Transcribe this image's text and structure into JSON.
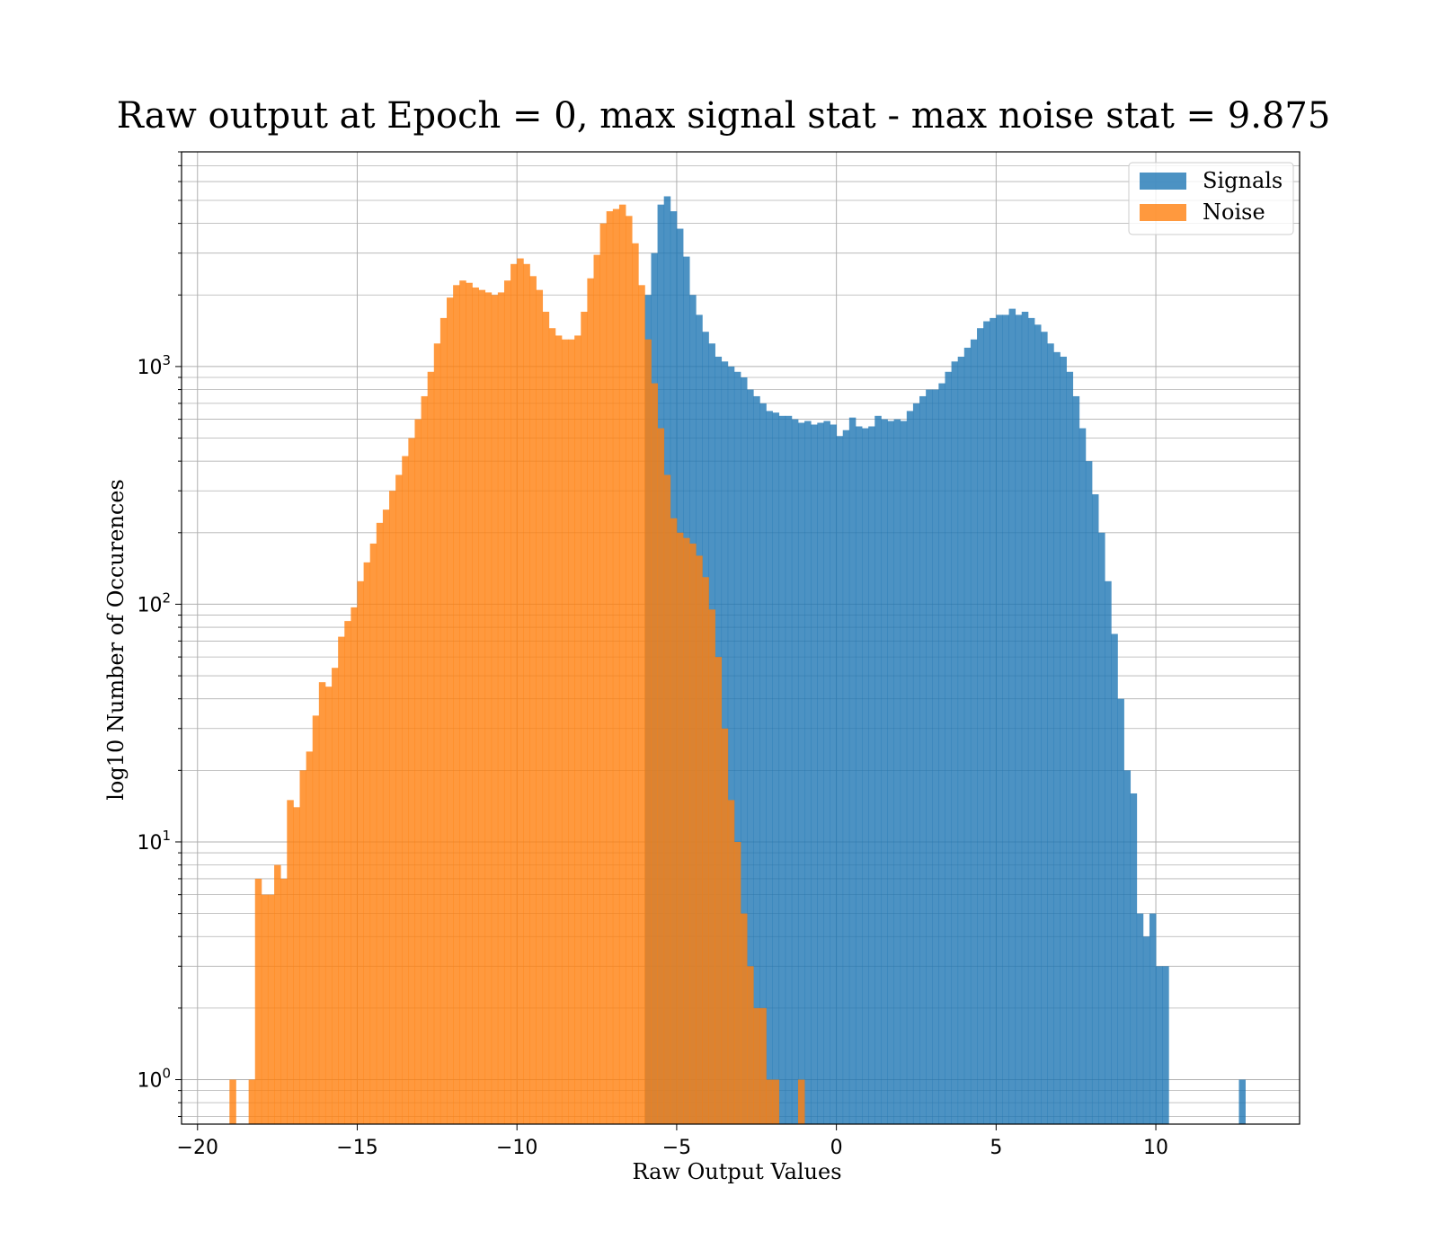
{
  "chart_data": {
    "type": "histogram",
    "title": "Raw output at Epoch = 0, max signal stat - max noise stat = 9.875",
    "xlabel": "Raw Output Values",
    "ylabel": "log10 Number of Occurences",
    "xlim": [
      -20.5,
      14.5
    ],
    "ylim": [
      0.65,
      8000
    ],
    "yscale": "log",
    "grid": true,
    "legend_position": "upper right",
    "x_ticks": [
      {
        "value": -20,
        "label": "−20"
      },
      {
        "value": -15,
        "label": "−15"
      },
      {
        "value": -10,
        "label": "−10"
      },
      {
        "value": -5,
        "label": "−5"
      },
      {
        "value": 0,
        "label": "0"
      },
      {
        "value": 5,
        "label": "5"
      },
      {
        "value": 10,
        "label": "10"
      }
    ],
    "y_ticks": [
      {
        "value": 1,
        "base": "10",
        "exp": "0"
      },
      {
        "value": 10,
        "base": "10",
        "exp": "1"
      },
      {
        "value": 100,
        "base": "10",
        "exp": "2"
      },
      {
        "value": 1000,
        "base": "10",
        "exp": "3"
      }
    ],
    "series": [
      {
        "name": "Signals",
        "color": "#1f77b4",
        "opacity": 0.8,
        "x_start": -6.0,
        "bin_width": 0.2,
        "values": [
          2000,
          3000,
          4800,
          5200,
          4500,
          3800,
          2900,
          2000,
          1650,
          1400,
          1250,
          1100,
          1050,
          1000,
          950,
          900,
          800,
          750,
          700,
          650,
          640,
          620,
          620,
          600,
          580,
          590,
          570,
          580,
          590,
          570,
          510,
          540,
          610,
          560,
          550,
          560,
          620,
          600,
          590,
          600,
          590,
          650,
          700,
          750,
          800,
          800,
          850,
          950,
          1050,
          1100,
          1200,
          1300,
          1450,
          1550,
          1600,
          1650,
          1650,
          1750,
          1650,
          1700,
          1600,
          1500,
          1400,
          1250,
          1150,
          1100,
          950,
          750,
          550,
          400,
          290,
          200,
          125,
          75,
          40,
          20,
          16,
          5,
          4,
          5,
          3,
          3,
          0,
          0,
          0,
          0,
          0,
          0,
          0,
          0,
          0,
          0,
          0,
          1
        ]
      },
      {
        "name": "Noise",
        "color": "#ff7f0e",
        "opacity": 0.8,
        "x_start": -19.0,
        "bin_width": 0.2,
        "values": [
          1,
          0,
          0,
          1,
          7,
          6,
          6,
          8,
          7,
          15,
          14,
          20,
          24,
          34,
          47,
          45,
          54,
          73,
          85,
          97,
          125,
          150,
          180,
          220,
          250,
          300,
          350,
          420,
          500,
          600,
          750,
          950,
          1250,
          1600,
          1950,
          2200,
          2300,
          2250,
          2150,
          2100,
          2050,
          2000,
          2050,
          2300,
          2700,
          2850,
          2700,
          2400,
          2100,
          1700,
          1450,
          1350,
          1300,
          1300,
          1350,
          1700,
          2350,
          2950,
          4000,
          4500,
          4600,
          4800,
          4300,
          3300,
          2200,
          1300,
          850,
          550,
          350,
          230,
          200,
          190,
          180,
          160,
          130,
          95,
          60,
          30,
          15,
          10,
          5,
          3,
          2,
          2,
          1,
          1,
          0,
          0,
          0,
          1,
          0
        ]
      }
    ]
  }
}
